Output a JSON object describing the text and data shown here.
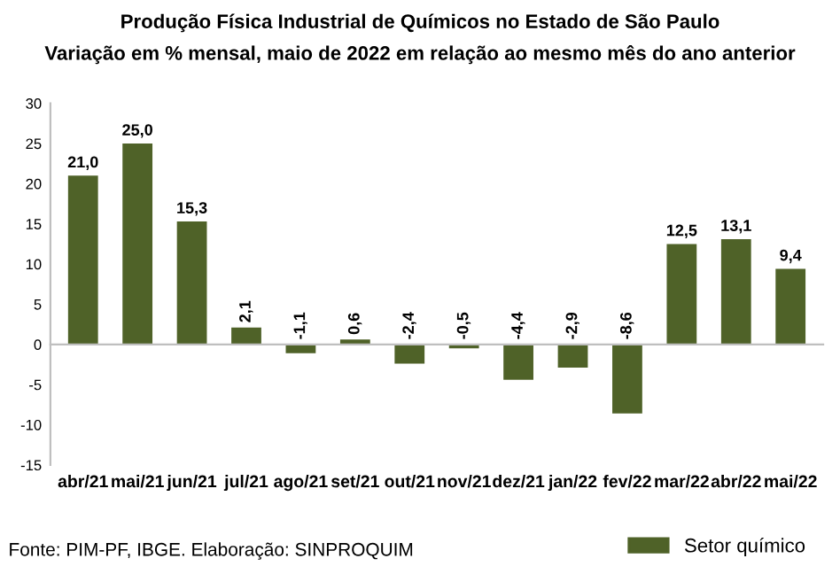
{
  "chart_data": {
    "type": "bar",
    "title": "Produção Física Industrial de Químicos no Estado de São Paulo",
    "subtitle": "Variação em % mensal, maio de 2022 em relação ao mesmo mês do ano anterior",
    "categories": [
      "abr/21",
      "mai/21",
      "jun/21",
      "jul/21",
      "ago/21",
      "set/21",
      "out/21",
      "nov/21",
      "dez/21",
      "jan/22",
      "fev/22",
      "mar/22",
      "abr/22",
      "mai/22"
    ],
    "series": [
      {
        "name": "Setor químico",
        "color": "#4f6228",
        "values": [
          21.0,
          25.0,
          15.3,
          2.1,
          -1.1,
          0.6,
          -2.4,
          -0.5,
          -4.4,
          -2.9,
          -8.6,
          12.5,
          13.1,
          9.4
        ],
        "value_labels": [
          "21,0",
          "25,0",
          "15,3",
          "2,1",
          "-1,1",
          "0,6",
          "-2,4",
          "-0,5",
          "-4,4",
          "-2,9",
          "-8,6",
          "12,5",
          "13,1",
          "9,4"
        ]
      }
    ],
    "ylim": [
      -15,
      30
    ],
    "yticks": [
      -15,
      -10,
      -5,
      0,
      5,
      10,
      15,
      20,
      25,
      30
    ],
    "legend": "bottom right",
    "annotations": [
      "Fonte: PIM-PF, IBGE. Elaboração: SINPROQUIM"
    ]
  }
}
